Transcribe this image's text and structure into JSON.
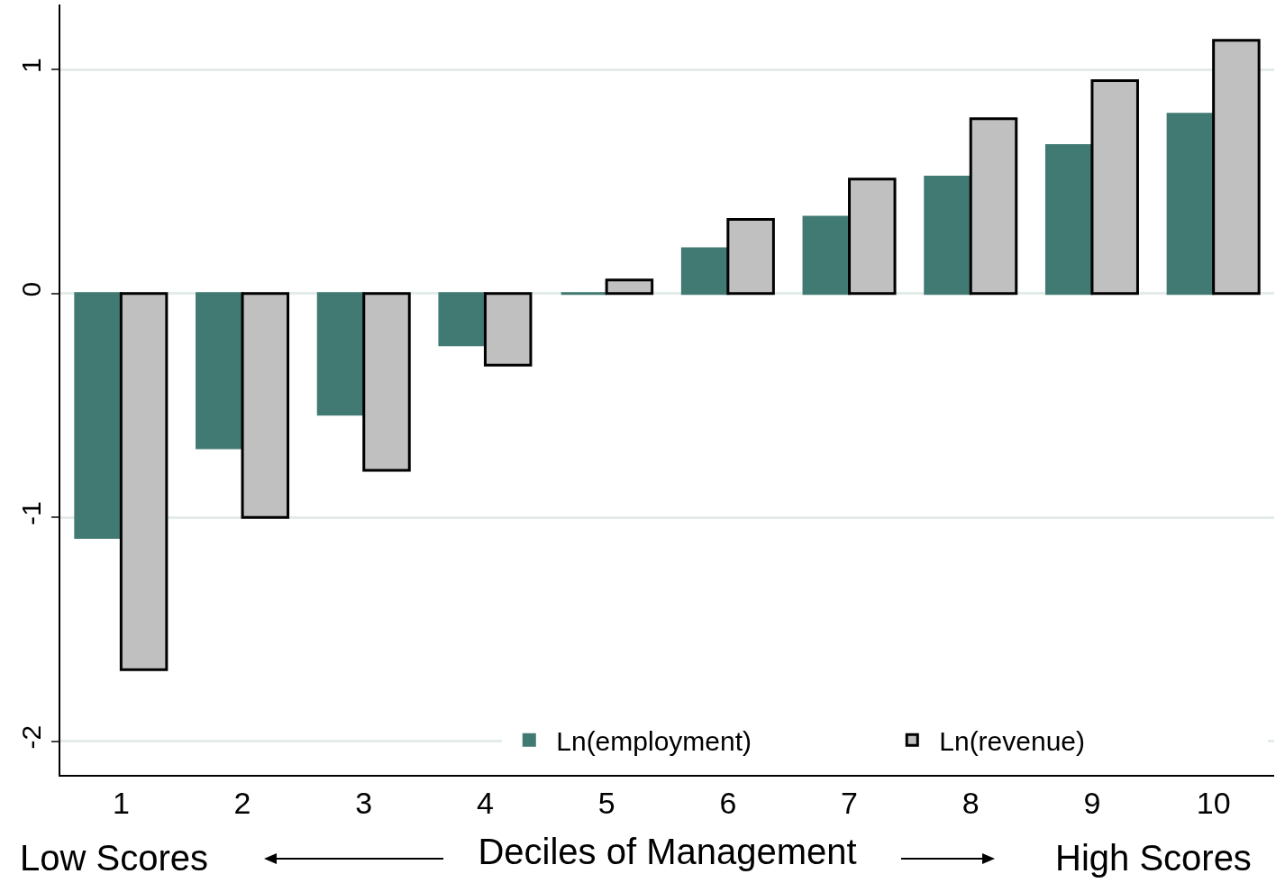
{
  "chart_data": {
    "type": "bar",
    "xlabel": "Deciles of Management",
    "categories": [
      "1",
      "2",
      "3",
      "4",
      "5",
      "6",
      "7",
      "8",
      "9",
      "10"
    ],
    "series": [
      {
        "name": "Ln(employment)",
        "color": "#407a72",
        "values": [
          -1.09,
          -0.69,
          -0.54,
          -0.23,
          0.0,
          0.2,
          0.34,
          0.52,
          0.66,
          0.8
        ]
      },
      {
        "name": "Ln(revenue)",
        "color": "#c0c0c0",
        "values": [
          -1.68,
          -1.0,
          -0.79,
          -0.32,
          0.06,
          0.33,
          0.51,
          0.78,
          0.95,
          1.13
        ]
      }
    ],
    "ylim": [
      -2.15,
      1.29
    ],
    "yticks": [
      -2,
      -1,
      0,
      1
    ],
    "grid": "y",
    "legend": "bottom right",
    "annotations": [
      "Low Scores",
      "High Scores"
    ]
  }
}
